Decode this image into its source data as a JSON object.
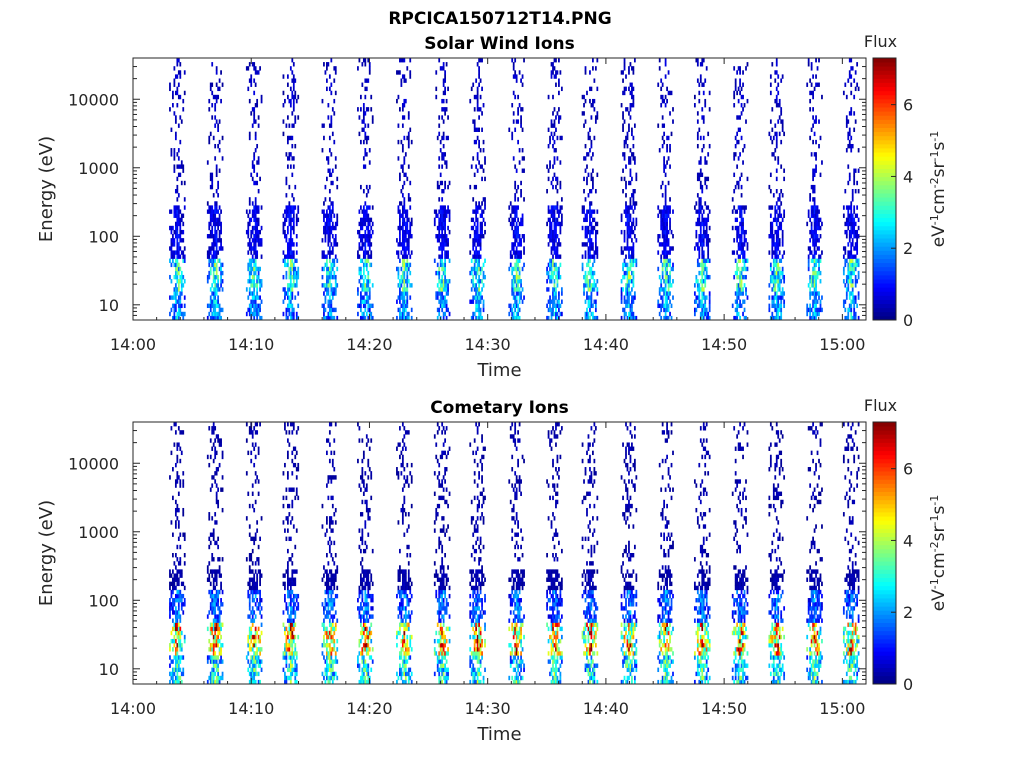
{
  "figure_title": "RPCICA150712T14.PNG",
  "colorbar": {
    "title": "Flux",
    "label": "eV-1cm-2sr-1s-1",
    "ticks": [
      "0",
      "2",
      "4",
      "6"
    ]
  },
  "chart_data": [
    {
      "type": "heatmap",
      "title": "Solar Wind Ions",
      "xlabel": "Time",
      "ylabel": "Energy (eV)",
      "y_scale": "log",
      "xlim": [
        "14:00",
        "15:02"
      ],
      "ylim": [
        6,
        40000
      ],
      "x_ticks": [
        "14:00",
        "14:10",
        "14:20",
        "14:30",
        "14:40",
        "14:50",
        "15:00"
      ],
      "y_ticks": [
        "10",
        "100",
        "1000",
        "10000"
      ],
      "clim": [
        0,
        7.3
      ],
      "colormap": "jet",
      "burst_times_min": [
        3.7,
        6.9,
        10.2,
        13.3,
        16.6,
        19.6,
        22.9,
        26.1,
        29.1,
        32.4,
        35.6,
        38.6,
        41.9,
        45.0,
        48.1,
        51.3,
        54.4,
        57.6,
        60.7
      ],
      "energy_ranges": [
        {
          "band_eV": [
            6,
            15
          ],
          "typical_flux": 2.5
        },
        {
          "band_eV": [
            15,
            50
          ],
          "typical_flux": 3.5
        },
        {
          "band_eV": [
            50,
            300
          ],
          "typical_flux": 1.0
        },
        {
          "band_eV": [
            300,
            40000
          ],
          "typical_flux": 0.6
        }
      ]
    },
    {
      "type": "heatmap",
      "title": "Cometary Ions",
      "xlabel": "Time",
      "ylabel": "Energy (eV)",
      "y_scale": "log",
      "xlim": [
        "14:00",
        "15:02"
      ],
      "ylim": [
        6,
        40000
      ],
      "x_ticks": [
        "14:00",
        "14:10",
        "14:20",
        "14:30",
        "14:40",
        "14:50",
        "15:00"
      ],
      "y_ticks": [
        "10",
        "100",
        "1000",
        "10000"
      ],
      "clim": [
        0,
        7.3
      ],
      "colormap": "jet",
      "burst_times_min": [
        3.7,
        6.9,
        10.2,
        13.3,
        16.6,
        19.6,
        22.9,
        26.1,
        29.1,
        32.4,
        35.6,
        38.6,
        41.9,
        45.0,
        48.1,
        51.3,
        54.4,
        57.6,
        60.7
      ],
      "energy_ranges": [
        {
          "band_eV": [
            6,
            15
          ],
          "typical_flux": 3.5
        },
        {
          "band_eV": [
            15,
            45
          ],
          "typical_flux": 6.2
        },
        {
          "band_eV": [
            45,
            150
          ],
          "typical_flux": 2.0
        },
        {
          "band_eV": [
            150,
            40000
          ],
          "typical_flux": 0.4
        }
      ]
    }
  ]
}
